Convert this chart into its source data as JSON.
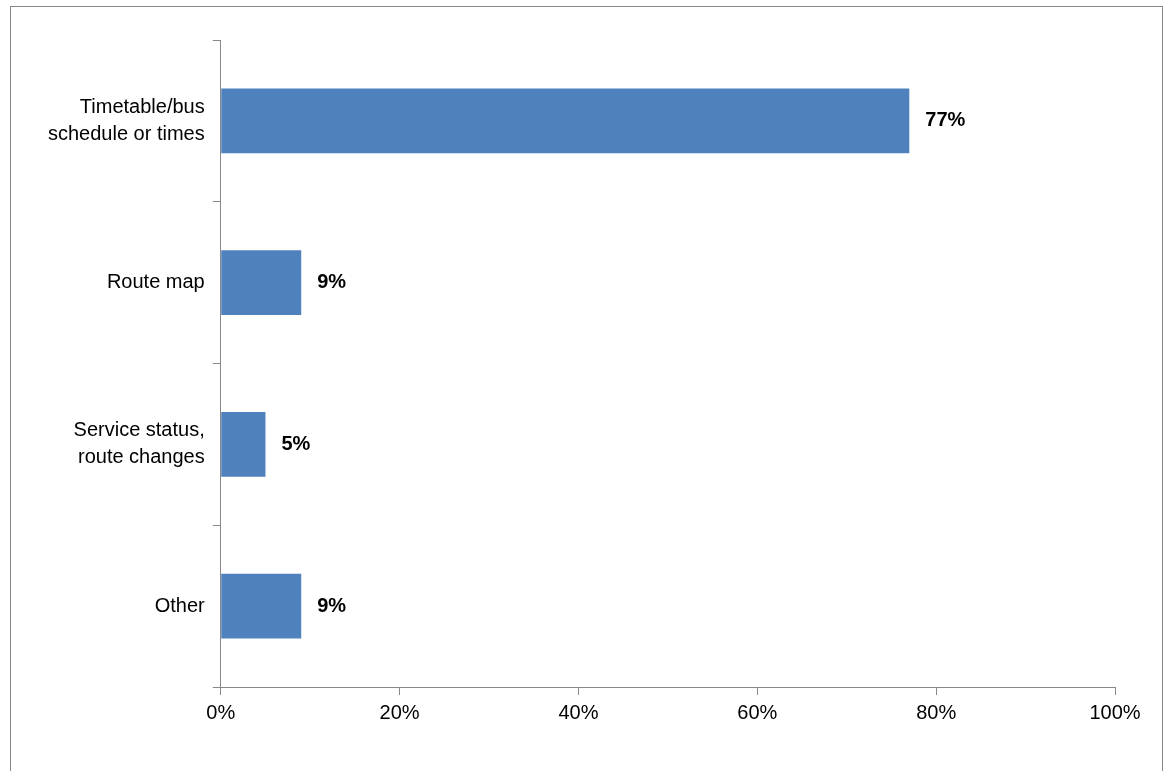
{
  "chart_data": {
    "type": "bar",
    "orientation": "horizontal",
    "categories": [
      "Timetable/bus schedule or times",
      "Route map",
      "Service status, route changes",
      "Other"
    ],
    "values": [
      77,
      9,
      5,
      9
    ],
    "value_labels": [
      "77%",
      "9%",
      "5%",
      "9%"
    ],
    "color": "#4f81bd",
    "xlim": [
      0,
      100
    ],
    "xticks": [
      {
        "value": 0,
        "label": "0%"
      },
      {
        "value": 20,
        "label": "20%"
      },
      {
        "value": 40,
        "label": "40%"
      },
      {
        "value": 60,
        "label": "60%"
      },
      {
        "value": 80,
        "label": "80%"
      },
      {
        "value": 100,
        "label": "100%"
      }
    ],
    "grid": false,
    "legend": false
  }
}
